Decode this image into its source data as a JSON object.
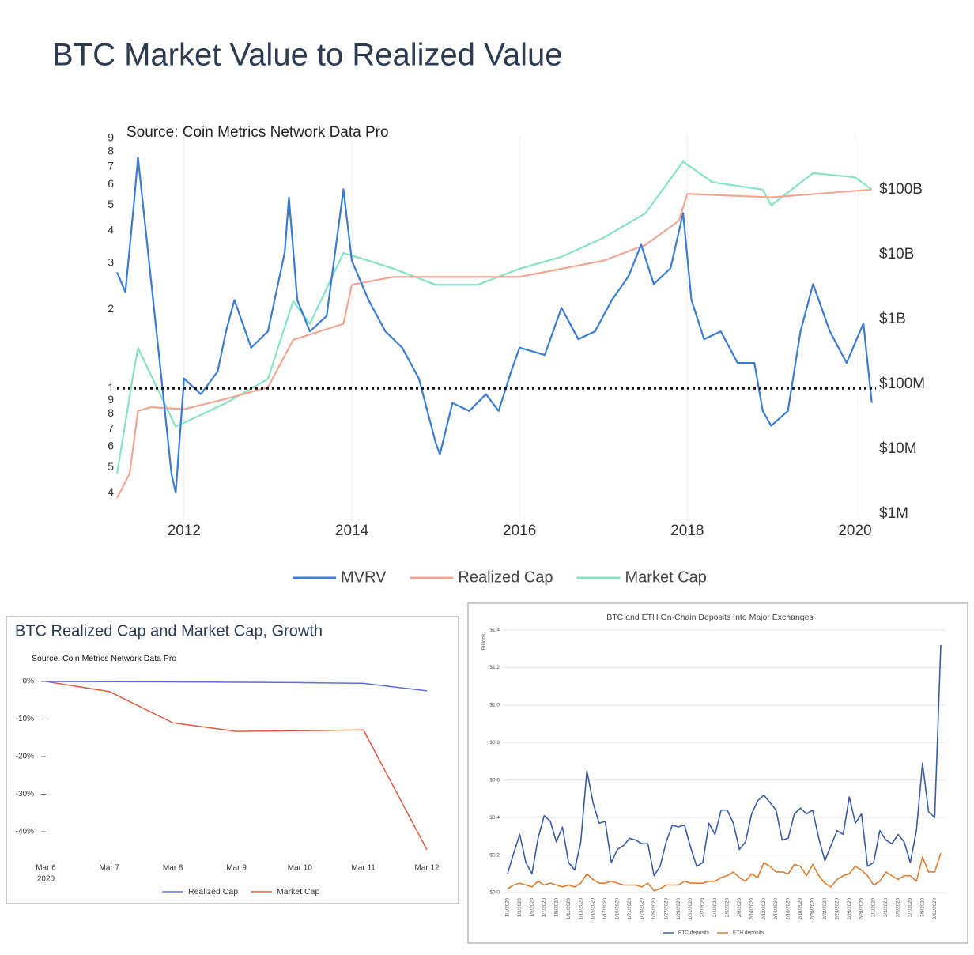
{
  "chart_data": [
    {
      "type": "line",
      "title": "BTC Market Value to Realized Value",
      "subtitle": "Source: Coin Metrics Network Data Pro",
      "xlim": [
        2011.2,
        2020.25
      ],
      "xticks": [
        2012,
        2014,
        2016,
        2018,
        2020
      ],
      "xgrid": true,
      "grid": false,
      "ylog": true,
      "ylim": [
        0.31,
        9.3
      ],
      "yticks": [
        {
          "value": 0.4,
          "label": "4"
        },
        {
          "value": 0.5,
          "label": "5"
        },
        {
          "value": 0.6,
          "label": "6"
        },
        {
          "value": 0.7,
          "label": "7"
        },
        {
          "value": 0.8,
          "label": "8"
        },
        {
          "value": 0.9,
          "label": "9"
        },
        1,
        2,
        3,
        4,
        5,
        6,
        7,
        8,
        9
      ],
      "y2log": true,
      "y2lim": [
        750000,
        710000000000
      ],
      "y2ticks": [
        {
          "value": 1000000,
          "label": "$1M"
        },
        {
          "value": 10000000,
          "label": "$10M"
        },
        {
          "value": 100000000,
          "label": "$100M"
        },
        {
          "value": 1000000000,
          "label": "$1B"
        },
        {
          "value": 10000000000,
          "label": "$10B"
        },
        {
          "value": 100000000000,
          "label": "$100B"
        }
      ],
      "hline": 1,
      "series": [
        {
          "name": "MVRV",
          "color": "#3a7bd5",
          "x": [
            2011.2,
            2011.3,
            2011.4,
            2011.45,
            2011.55,
            2011.65,
            2011.75,
            2011.85,
            2011.9,
            2012.0,
            2012.2,
            2012.4,
            2012.5,
            2012.6,
            2012.8,
            2013.0,
            2013.2,
            2013.25,
            2013.35,
            2013.5,
            2013.7,
            2013.9,
            2014.0,
            2014.2,
            2014.4,
            2014.6,
            2014.8,
            2015.0,
            2015.05,
            2015.2,
            2015.4,
            2015.6,
            2015.75,
            2015.9,
            2016.0,
            2016.3,
            2016.5,
            2016.7,
            2016.9,
            2017.1,
            2017.3,
            2017.45,
            2017.6,
            2017.8,
            2017.95,
            2018.05,
            2018.2,
            2018.4,
            2018.6,
            2018.8,
            2018.9,
            2019.0,
            2019.2,
            2019.35,
            2019.5,
            2019.7,
            2019.9,
            2020.1,
            2020.2
          ],
          "values": [
            2.77,
            2.33,
            5.0,
            7.6,
            3.8,
            1.9,
            0.95,
            0.47,
            0.4,
            1.09,
            0.95,
            1.16,
            1.65,
            2.17,
            1.43,
            1.65,
            3.3,
            5.35,
            2.17,
            1.65,
            1.89,
            5.74,
            3.07,
            2.17,
            1.65,
            1.43,
            1.09,
            0.62,
            0.56,
            0.88,
            0.82,
            0.95,
            0.82,
            1.16,
            1.43,
            1.34,
            2.03,
            1.54,
            1.65,
            2.17,
            2.68,
            3.53,
            2.5,
            2.87,
            4.66,
            2.17,
            1.54,
            1.65,
            1.25,
            1.25,
            0.82,
            0.72,
            0.82,
            1.65,
            2.5,
            1.65,
            1.25,
            1.77,
            0.88
          ]
        },
        {
          "name": "Realized Cap",
          "color": "#f2a592",
          "axis": "y2",
          "x": [
            2011.2,
            2011.35,
            2011.45,
            2011.6,
            2012.0,
            2012.5,
            2013.0,
            2013.3,
            2013.9,
            2014.0,
            2014.5,
            2015.0,
            2016.0,
            2017.0,
            2017.5,
            2017.9,
            2018.0,
            2019.0,
            2020.2
          ],
          "values": [
            1750000,
            4100000,
            38500000,
            44000000,
            41000000,
            59000000,
            89000000,
            480000000,
            850000000,
            3400000000,
            4500000000,
            4500000000,
            4500000000,
            8000000000,
            14000000000,
            33000000000,
            86000000000,
            76000000000,
            100000000000
          ]
        },
        {
          "name": "Market Cap",
          "color": "#86e3bf",
          "axis": "y2",
          "x": [
            2011.2,
            2011.4,
            2011.45,
            2011.9,
            2012.5,
            2013.0,
            2013.3,
            2013.5,
            2013.9,
            2014.2,
            2014.5,
            2015.0,
            2015.5,
            2016.0,
            2016.5,
            2017.0,
            2017.5,
            2017.95,
            2018.3,
            2018.9,
            2019.0,
            2019.5,
            2020.0,
            2020.2
          ],
          "values": [
            4100000,
            160000000,
            360000000,
            22000000,
            51000000,
            120000000,
            1900000000,
            850000000,
            10500000000,
            8000000000,
            6000000000,
            3400000000,
            3400000000,
            6000000000,
            9200000000,
            18000000000,
            43000000000,
            270000000000,
            130000000000,
            100000000000,
            57000000000,
            180000000000,
            155000000000,
            100000000000
          ]
        }
      ]
    },
    {
      "type": "line",
      "title": "BTC Realized Cap and Market Cap, Growth",
      "subtitle": "Source: Coin Metrics Network Data Pro",
      "categories": [
        "Mar 6",
        "Mar 7",
        "Mar 8",
        "Mar 9",
        "Mar 10",
        "Mar 11",
        "Mar 12"
      ],
      "year_label": "2020",
      "ylim": [
        -46,
        0
      ],
      "grid": false,
      "yticks": [
        {
          "value": 0,
          "label": "-0%"
        },
        {
          "value": -10,
          "label": "-10%"
        },
        {
          "value": -20,
          "label": "-20%"
        },
        {
          "value": -30,
          "label": "-30%"
        },
        {
          "value": -40,
          "label": "-40%"
        }
      ],
      "series": [
        {
          "name": "Realized Cap",
          "color": "#5b6ee1",
          "values": [
            0,
            -0.05,
            -0.1,
            -0.2,
            -0.3,
            -0.5,
            -2.5
          ]
        },
        {
          "name": "Market Cap",
          "color": "#e05a40",
          "values": [
            0,
            -2.7,
            -11,
            -13.3,
            -13.1,
            -12.9,
            -44.8
          ]
        }
      ]
    },
    {
      "type": "line",
      "title": "BTC and ETH On-Chain Deposits Into Major Exchanges",
      "ylabel": "Billions",
      "categories": [
        "1/1/2020",
        null,
        "1/3/2020",
        null,
        "1/5/2020",
        null,
        "1/7/2020",
        null,
        "1/9/2020",
        null,
        "1/11/2020",
        null,
        "1/13/2020",
        null,
        "1/15/2020",
        null,
        "1/17/2020",
        null,
        "1/19/2020",
        null,
        "1/21/2020",
        null,
        "1/23/2020",
        null,
        "1/25/2020",
        null,
        "1/27/2020",
        null,
        "1/29/2020",
        null,
        "1/31/2020",
        null,
        "2/2/2020",
        null,
        "2/4/2020",
        null,
        "2/6/2020",
        null,
        "2/8/2020",
        null,
        "2/10/2020",
        null,
        "2/12/2020",
        null,
        "2/14/2020",
        null,
        "2/16/2020",
        null,
        "2/18/2020",
        null,
        "2/20/2020",
        null,
        "2/22/2020",
        null,
        "2/24/2020",
        null,
        "2/26/2020",
        null,
        "2/28/2020",
        null,
        "3/1/2020",
        null,
        "3/3/2020",
        null,
        "3/5/2020",
        null,
        "3/7/2020",
        null,
        "3/9/2020",
        null,
        "3/11/2020",
        null
      ],
      "ylim": [
        0,
        1.4
      ],
      "grid": true,
      "yticks": [
        {
          "value": 0,
          "label": "$0.0"
        },
        {
          "value": 0.2,
          "label": "$0.2"
        },
        {
          "value": 0.4,
          "label": "$0.4"
        },
        {
          "value": 0.6,
          "label": "$0.6"
        },
        {
          "value": 0.8,
          "label": "$0.8"
        },
        {
          "value": 1.0,
          "label": "$1.0"
        },
        {
          "value": 1.2,
          "label": "$1.2"
        },
        {
          "value": 1.4,
          "label": "$1.4"
        }
      ],
      "series": [
        {
          "name": "BTC deposits",
          "color": "#3b5ba5",
          "values": [
            0.1,
            0.21,
            0.31,
            0.16,
            0.1,
            0.29,
            0.41,
            0.38,
            0.27,
            0.35,
            0.16,
            0.12,
            0.27,
            0.65,
            0.48,
            0.37,
            0.38,
            0.16,
            0.23,
            0.25,
            0.29,
            0.28,
            0.26,
            0.26,
            0.09,
            0.14,
            0.27,
            0.36,
            0.35,
            0.36,
            0.24,
            0.14,
            0.16,
            0.37,
            0.31,
            0.44,
            0.44,
            0.37,
            0.23,
            0.27,
            0.42,
            0.49,
            0.52,
            0.48,
            0.44,
            0.28,
            0.29,
            0.42,
            0.45,
            0.42,
            0.44,
            0.29,
            0.17,
            0.25,
            0.33,
            0.31,
            0.51,
            0.37,
            0.42,
            0.14,
            0.16,
            0.33,
            0.28,
            0.26,
            0.31,
            0.27,
            0.16,
            0.33,
            0.69,
            0.43,
            0.4,
            1.32
          ]
        },
        {
          "name": "ETH deposits",
          "color": "#e07b30",
          "values": [
            0.02,
            0.04,
            0.05,
            0.04,
            0.03,
            0.06,
            0.04,
            0.05,
            0.04,
            0.03,
            0.04,
            0.03,
            0.05,
            0.1,
            0.07,
            0.05,
            0.05,
            0.06,
            0.05,
            0.04,
            0.04,
            0.04,
            0.03,
            0.05,
            0.01,
            0.02,
            0.04,
            0.04,
            0.04,
            0.06,
            0.05,
            0.05,
            0.05,
            0.06,
            0.06,
            0.08,
            0.09,
            0.11,
            0.08,
            0.06,
            0.1,
            0.08,
            0.16,
            0.14,
            0.11,
            0.11,
            0.1,
            0.15,
            0.14,
            0.09,
            0.15,
            0.09,
            0.05,
            0.03,
            0.07,
            0.09,
            0.1,
            0.14,
            0.12,
            0.09,
            0.04,
            0.06,
            0.11,
            0.09,
            0.07,
            0.09,
            0.09,
            0.06,
            0.19,
            0.11,
            0.11,
            0.21
          ]
        }
      ]
    }
  ]
}
